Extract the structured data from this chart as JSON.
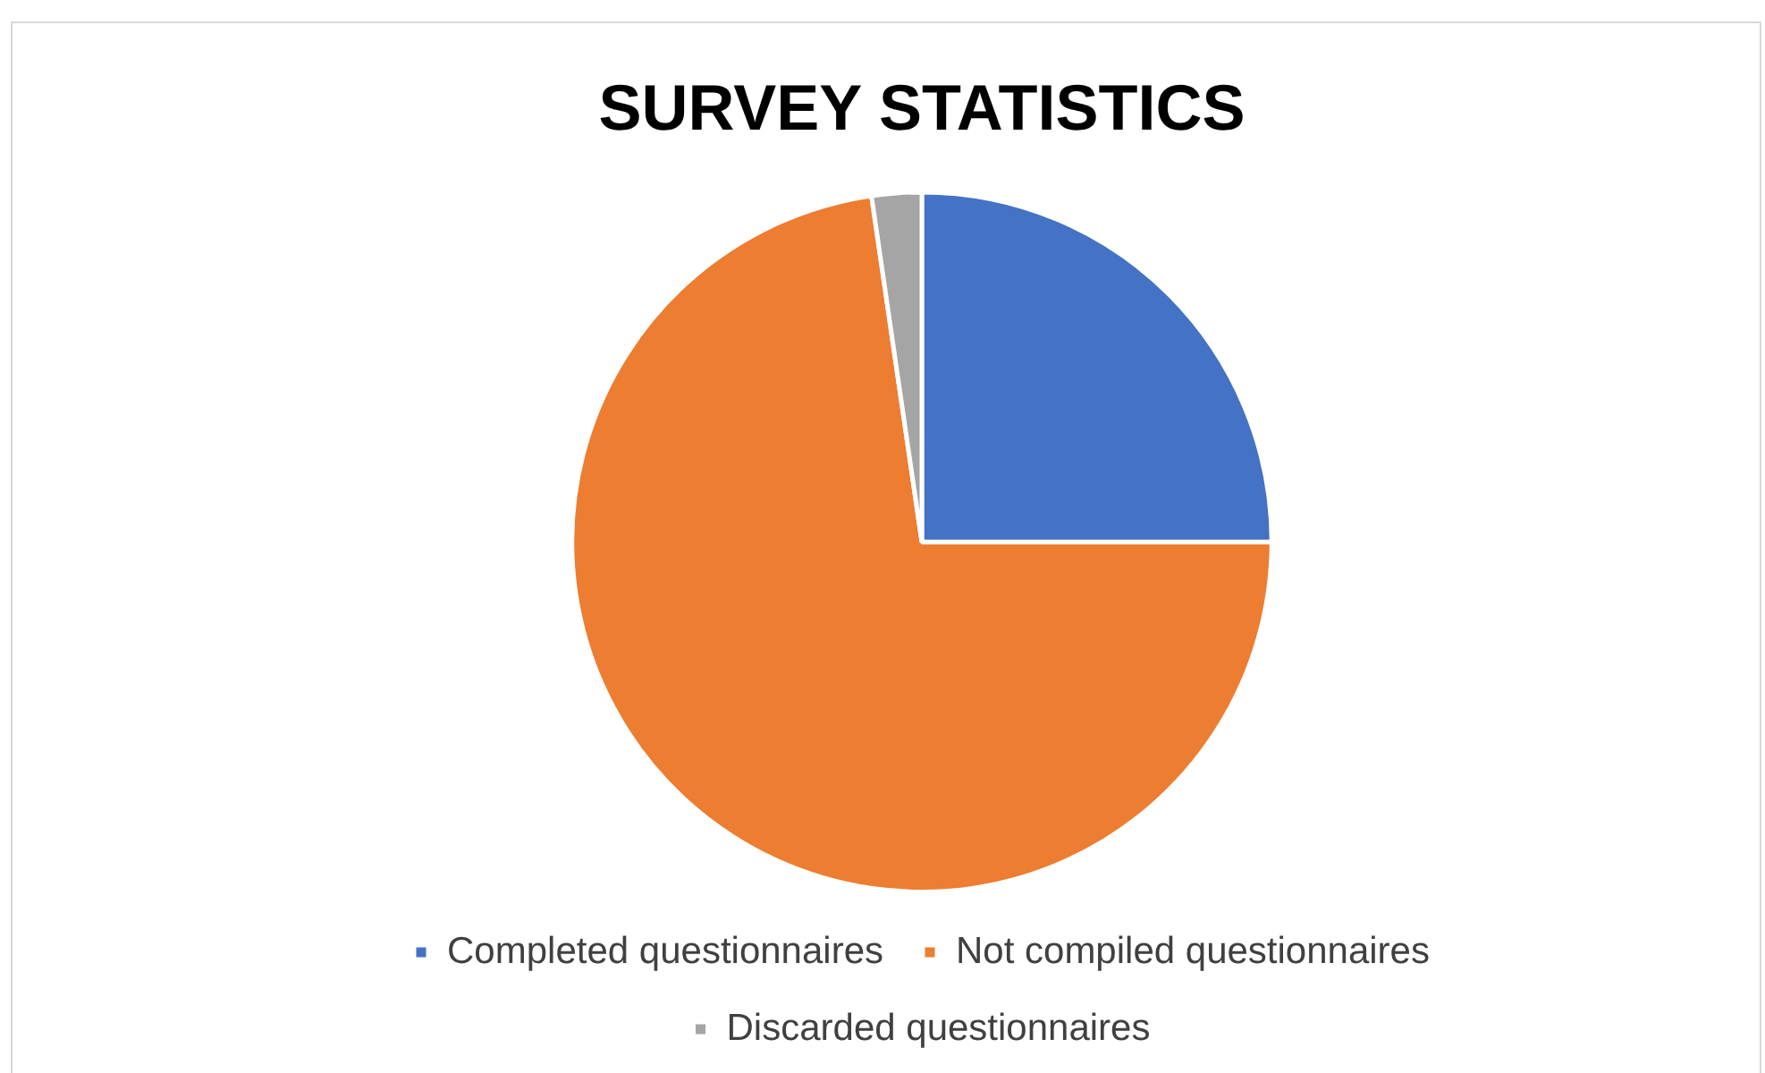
{
  "chart_data": {
    "type": "pie",
    "title": "SURVEY STATISTICS",
    "categories": [
      "Completed questionnaires",
      "Not compiled questionnaires",
      "Discarded questionnaires"
    ],
    "values": [
      25,
      72.7,
      2.3
    ],
    "colors": [
      "#4472c4",
      "#ed7d31",
      "#a5a5a5"
    ],
    "legend": "bottom"
  }
}
